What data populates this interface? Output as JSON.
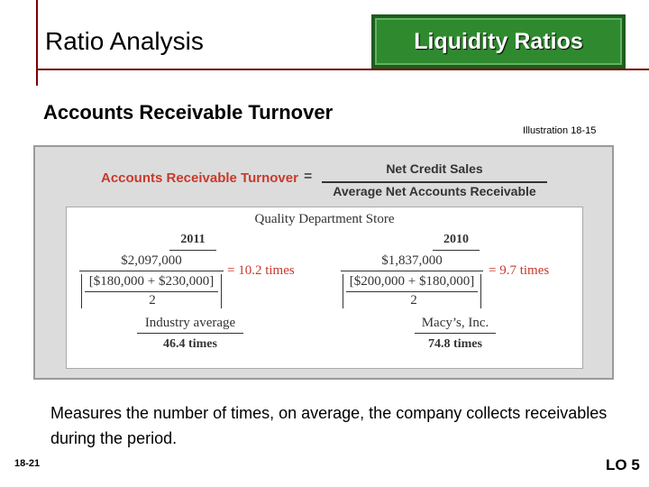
{
  "slide": {
    "title": "Ratio Analysis",
    "badge": "Liquidity Ratios",
    "subtitle": "Accounts Receivable Turnover",
    "illustration": "Illustration 18-15",
    "description": "Measures the number of times, on average, the company collects receivables during the period.",
    "slide_number": "18-21",
    "learning_objective": "LO 5"
  },
  "formula": {
    "label": "Accounts Receivable Turnover",
    "equals": "=",
    "numerator": "Net Credit Sales",
    "denominator": "Average Net Accounts Receivable"
  },
  "example": {
    "company": "Quality Department Store",
    "left": {
      "year": "2011",
      "numerator": "$2,097,000",
      "denominator": "[$180,000 + $230,000]",
      "divisor": "2",
      "result": "= 10.2 times",
      "comparison_label": "Industry average",
      "comparison_value": "46.4 times"
    },
    "right": {
      "year": "2010",
      "numerator": "$1,837,000",
      "denominator": "[$200,000 + $180,000]",
      "divisor": "2",
      "result": "= 9.7 times",
      "comparison_label": "Macy’s, Inc.",
      "comparison_value": "74.8 times"
    }
  },
  "colors": {
    "accent_red": "#c8392b",
    "rule_maroon": "#7a0000",
    "badge_green": "#2f8a2f"
  }
}
